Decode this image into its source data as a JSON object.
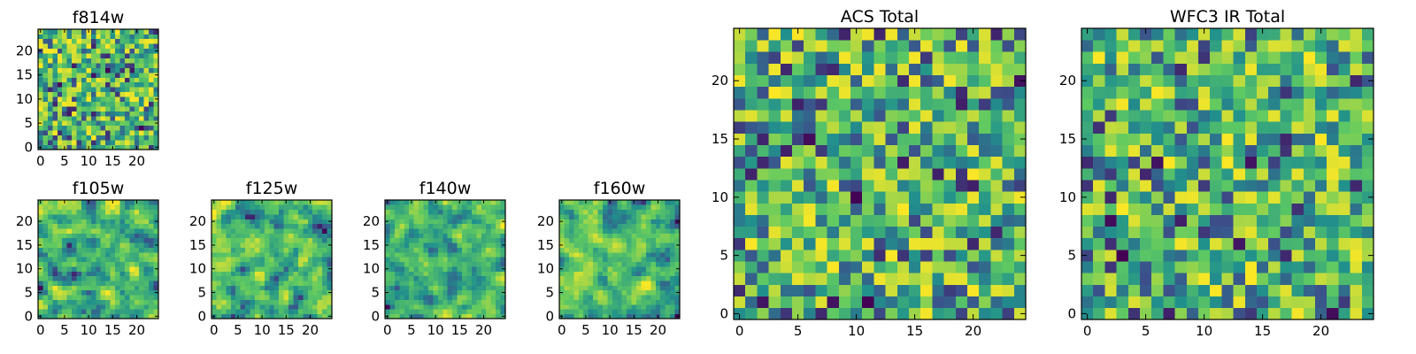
{
  "figure": {
    "background": "#ffffff"
  },
  "colormap": {
    "name": "viridis",
    "stops": [
      "#440154",
      "#3b528b",
      "#21918c",
      "#5ec962",
      "#fde725"
    ]
  },
  "chart_data": [
    {
      "type": "heatmap",
      "id": "f814w",
      "title": "f814w",
      "grid": [
        25,
        25
      ],
      "seed": 11,
      "smooth": false,
      "xticks": [
        0,
        5,
        10,
        15,
        20
      ],
      "yticks": [
        0,
        5,
        10,
        15,
        20
      ],
      "xlim": [
        -0.5,
        24.5
      ],
      "ylim": [
        -0.5,
        24.5
      ]
    },
    {
      "type": "heatmap",
      "id": "f105w",
      "title": "f105w",
      "grid": [
        25,
        25
      ],
      "seed": 23,
      "smooth": true,
      "xticks": [
        0,
        5,
        10,
        15,
        20
      ],
      "yticks": [
        0,
        5,
        10,
        15,
        20
      ],
      "xlim": [
        -0.5,
        24.5
      ],
      "ylim": [
        -0.5,
        24.5
      ]
    },
    {
      "type": "heatmap",
      "id": "f125w",
      "title": "f125w",
      "grid": [
        25,
        25
      ],
      "seed": 37,
      "smooth": true,
      "xticks": [
        0,
        5,
        10,
        15,
        20
      ],
      "yticks": [
        0,
        5,
        10,
        15,
        20
      ],
      "xlim": [
        -0.5,
        24.5
      ],
      "ylim": [
        -0.5,
        24.5
      ]
    },
    {
      "type": "heatmap",
      "id": "f140w",
      "title": "f140w",
      "grid": [
        25,
        25
      ],
      "seed": 41,
      "smooth": true,
      "xticks": [
        0,
        5,
        10,
        15,
        20
      ],
      "yticks": [
        0,
        5,
        10,
        15,
        20
      ],
      "xlim": [
        -0.5,
        24.5
      ],
      "ylim": [
        -0.5,
        24.5
      ]
    },
    {
      "type": "heatmap",
      "id": "f160w",
      "title": "f160w",
      "grid": [
        25,
        25
      ],
      "seed": 53,
      "smooth": true,
      "xticks": [
        0,
        5,
        10,
        15,
        20
      ],
      "yticks": [
        0,
        5,
        10,
        15,
        20
      ],
      "xlim": [
        -0.5,
        24.5
      ],
      "ylim": [
        -0.5,
        24.5
      ]
    },
    {
      "type": "heatmap",
      "id": "acs-total",
      "title": "ACS Total",
      "grid": [
        25,
        25
      ],
      "seed": 67,
      "smooth": false,
      "xticks": [
        0,
        5,
        10,
        15,
        20
      ],
      "yticks": [
        0,
        5,
        10,
        15,
        20
      ],
      "xlim": [
        -0.5,
        24.5
      ],
      "ylim": [
        -0.5,
        24.5
      ]
    },
    {
      "type": "heatmap",
      "id": "wfc3-ir-total",
      "title": "WFC3 IR Total",
      "grid": [
        25,
        25
      ],
      "seed": 79,
      "smooth": false,
      "xticks": [
        0,
        5,
        10,
        15,
        20
      ],
      "yticks": [
        0,
        5,
        10,
        15,
        20
      ],
      "xlim": [
        -0.5,
        24.5
      ],
      "ylim": [
        -0.5,
        24.5
      ]
    }
  ]
}
